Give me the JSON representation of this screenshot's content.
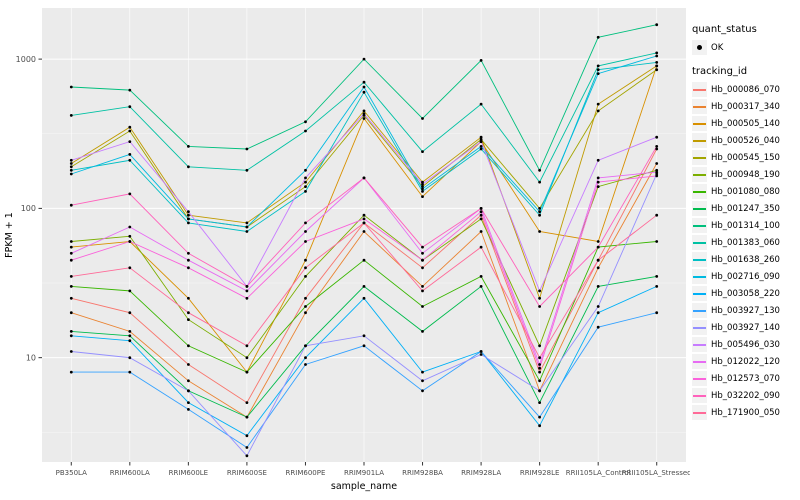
{
  "chart_data": {
    "type": "line",
    "title": "",
    "xlabel": "sample_name",
    "ylabel": "FPKM + 1",
    "y_scale": "log10",
    "ylim": [
      2,
      2200
    ],
    "y_ticks": [
      10,
      100,
      1000
    ],
    "y_tick_labels": [
      "10",
      "100",
      "1000"
    ],
    "y_minor_ticks": [
      3.162,
      31.62,
      316.2
    ],
    "grid": true,
    "legend_position": "right",
    "categories": [
      "PB350LA",
      "RRIM600LA",
      "RRIM600LE",
      "RRIM600SE",
      "RRIM600PE",
      "RRIM901LA",
      "RRIM928BA",
      "RRIM928LA",
      "RRIM928LE",
      "RRII105LA_Control",
      "RRII105LA_Stressed"
    ],
    "series": [
      {
        "name": "Hb_000086_070",
        "color": "#F8766D",
        "values": [
          25,
          20,
          9,
          5,
          25,
          80,
          40,
          90,
          8,
          45,
          250
        ]
      },
      {
        "name": "Hb_000317_340",
        "color": "#EA8331",
        "values": [
          20,
          15,
          7,
          4,
          20,
          70,
          30,
          70,
          6,
          40,
          200
        ]
      },
      {
        "name": "Hb_000505_140",
        "color": "#D89000",
        "values": [
          55,
          60,
          25,
          8,
          45,
          400,
          120,
          280,
          70,
          60,
          900
        ]
      },
      {
        "name": "Hb_000526_040",
        "color": "#C09B00",
        "values": [
          200,
          350,
          90,
          80,
          150,
          450,
          150,
          300,
          25,
          500,
          900
        ]
      },
      {
        "name": "Hb_000545_150",
        "color": "#A3A500",
        "values": [
          190,
          330,
          85,
          75,
          140,
          420,
          140,
          290,
          100,
          450,
          850
        ]
      },
      {
        "name": "Hb_000948_190",
        "color": "#7CAE00",
        "values": [
          60,
          65,
          18,
          10,
          35,
          90,
          45,
          85,
          12,
          140,
          180
        ]
      },
      {
        "name": "Hb_001080_080",
        "color": "#39B600",
        "values": [
          30,
          28,
          12,
          8,
          22,
          45,
          22,
          35,
          7,
          55,
          60
        ]
      },
      {
        "name": "Hb_001247_350",
        "color": "#00BB4E",
        "values": [
          15,
          14,
          6,
          4,
          12,
          30,
          15,
          30,
          5,
          30,
          35
        ]
      },
      {
        "name": "Hb_001314_100",
        "color": "#00BF7D",
        "values": [
          650,
          620,
          260,
          250,
          380,
          1000,
          400,
          980,
          180,
          1400,
          1700
        ]
      },
      {
        "name": "Hb_001383_060",
        "color": "#00C1A3",
        "values": [
          420,
          480,
          190,
          180,
          330,
          700,
          240,
          500,
          150,
          900,
          1100
        ]
      },
      {
        "name": "Hb_001638_260",
        "color": "#00BFC4",
        "values": [
          180,
          210,
          80,
          70,
          130,
          600,
          130,
          250,
          90,
          850,
          950
        ]
      },
      {
        "name": "Hb_002716_090",
        "color": "#00BAE0",
        "values": [
          170,
          230,
          85,
          75,
          180,
          650,
          135,
          260,
          95,
          800,
          1050
        ]
      },
      {
        "name": "Hb_003058_220",
        "color": "#00B0F6",
        "values": [
          14,
          13,
          5,
          3,
          10,
          25,
          8,
          11,
          3.5,
          20,
          30
        ]
      },
      {
        "name": "Hb_003927_130",
        "color": "#35A2FF",
        "values": [
          8,
          8,
          4.5,
          2.5,
          9,
          12,
          6,
          11,
          4,
          16,
          20
        ]
      },
      {
        "name": "Hb_003927_140",
        "color": "#9590FF",
        "values": [
          11,
          10,
          6,
          2.2,
          12,
          14,
          7,
          10.5,
          6,
          22,
          170
        ]
      },
      {
        "name": "Hb_005496_030",
        "color": "#C77CFF",
        "values": [
          210,
          280,
          95,
          30,
          160,
          430,
          145,
          280,
          28,
          210,
          300
        ]
      },
      {
        "name": "Hb_012022_120",
        "color": "#E76BF3",
        "values": [
          50,
          75,
          45,
          28,
          70,
          160,
          50,
          100,
          9,
          160,
          175
        ]
      },
      {
        "name": "Hb_012573_070",
        "color": "#FA62DB",
        "values": [
          45,
          60,
          40,
          25,
          60,
          85,
          45,
          95,
          8.5,
          150,
          165
        ]
      },
      {
        "name": "Hb_032202_090",
        "color": "#FF62BC",
        "values": [
          105,
          125,
          50,
          30,
          80,
          160,
          55,
          100,
          22,
          55,
          260
        ]
      },
      {
        "name": "Hb_171900_050",
        "color": "#FF6A98",
        "values": [
          35,
          40,
          20,
          12,
          40,
          80,
          28,
          55,
          10,
          45,
          90
        ]
      }
    ],
    "legend": {
      "quant_status_title": "quant_status",
      "quant_status_items": [
        "OK"
      ],
      "tracking_id_title": "tracking_id"
    },
    "theme": {
      "panel_bg": "#EBEBEB",
      "grid_major": "#FFFFFF",
      "grid_minor": "#F7F7F7",
      "point_color": "#000000",
      "tick_label_color": "#4D4D4D",
      "axis_title_color": "#000000",
      "legend_key_bg": "#F2F2F2"
    }
  }
}
